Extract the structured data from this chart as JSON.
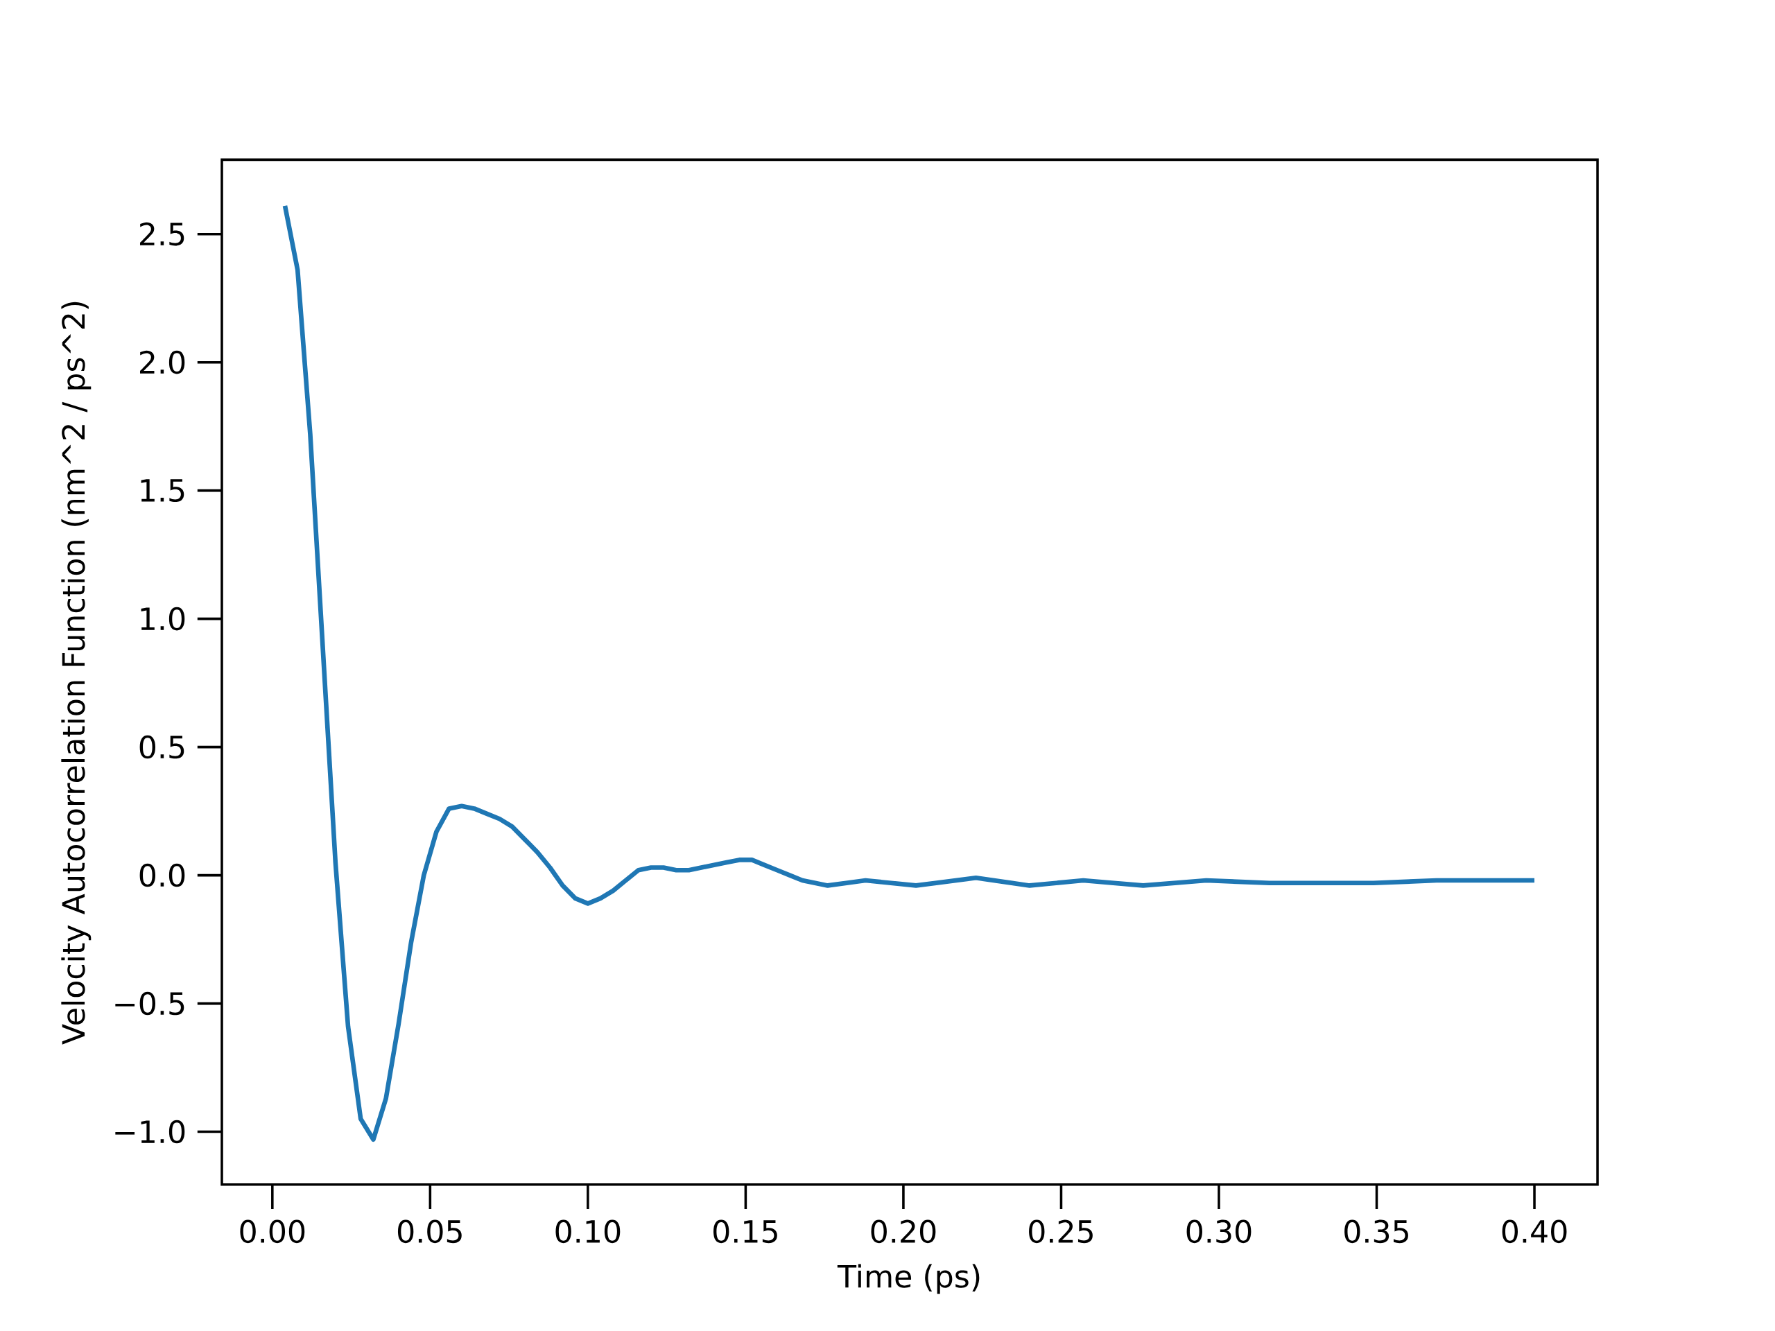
{
  "chart_data": {
    "type": "line",
    "xlabel": "Time (ps)",
    "ylabel": "Velocity Autocorrelation Function (nm^2 / ps^2)",
    "xlim": [
      -0.016,
      0.42
    ],
    "ylim": [
      -1.206,
      2.79
    ],
    "xticks": [
      {
        "value": 0,
        "label": "0.00"
      },
      {
        "value": 0.05,
        "label": "0.05"
      },
      {
        "value": 0.1,
        "label": "0.10"
      },
      {
        "value": 0.15,
        "label": "0.15"
      },
      {
        "value": 0.2,
        "label": "0.20"
      },
      {
        "value": 0.25,
        "label": "0.25"
      },
      {
        "value": 0.3,
        "label": "0.30"
      },
      {
        "value": 0.35,
        "label": "0.35"
      },
      {
        "value": 0.4,
        "label": "0.40"
      }
    ],
    "yticks": [
      {
        "value": -1,
        "label": "−1.0"
      },
      {
        "value": -0.5,
        "label": "−0.5"
      },
      {
        "value": 0,
        "label": "0.0"
      },
      {
        "value": 0.5,
        "label": "0.5"
      },
      {
        "value": 1,
        "label": "1.0"
      },
      {
        "value": 1.5,
        "label": "1.5"
      },
      {
        "value": 2,
        "label": "2.0"
      },
      {
        "value": 2.5,
        "label": "2.5"
      }
    ],
    "grid": false,
    "marker": "none",
    "line_style": "solid",
    "series": [
      {
        "color": "#1f77b4",
        "x": [
          0.004,
          0.008,
          0.012,
          0.02,
          0.024,
          0.028,
          0.032,
          0.036,
          0.04,
          0.044,
          0.048,
          0.052,
          0.056,
          0.06,
          0.064,
          0.068,
          0.072,
          0.076,
          0.08,
          0.084,
          0.088,
          0.092,
          0.096,
          0.1,
          0.104,
          0.108,
          0.112,
          0.116,
          0.12,
          0.124,
          0.128,
          0.132,
          0.136,
          0.14,
          0.144,
          0.148,
          0.152,
          0.156,
          0.16,
          0.164,
          0.168,
          0.172,
          0.176,
          0.188,
          0.204,
          0.223,
          0.24,
          0.257,
          0.276,
          0.296,
          0.316,
          0.335,
          0.349,
          0.369,
          0.385,
          0.4
        ],
        "values": [
          2.61,
          2.36,
          1.72,
          0.05,
          -0.59,
          -0.95,
          -1.03,
          -0.87,
          -0.58,
          -0.26,
          0.0,
          0.17,
          0.26,
          0.27,
          0.26,
          0.24,
          0.22,
          0.19,
          0.14,
          0.09,
          0.03,
          -0.04,
          -0.09,
          -0.11,
          -0.09,
          -0.06,
          -0.02,
          0.02,
          0.03,
          0.03,
          0.02,
          0.02,
          0.03,
          0.04,
          0.05,
          0.06,
          0.06,
          0.04,
          0.02,
          0.0,
          -0.02,
          -0.03,
          -0.04,
          -0.02,
          -0.04,
          -0.01,
          -0.04,
          -0.02,
          -0.04,
          -0.02,
          -0.03,
          -0.03,
          -0.03,
          -0.02,
          -0.02,
          -0.02
        ]
      }
    ]
  }
}
